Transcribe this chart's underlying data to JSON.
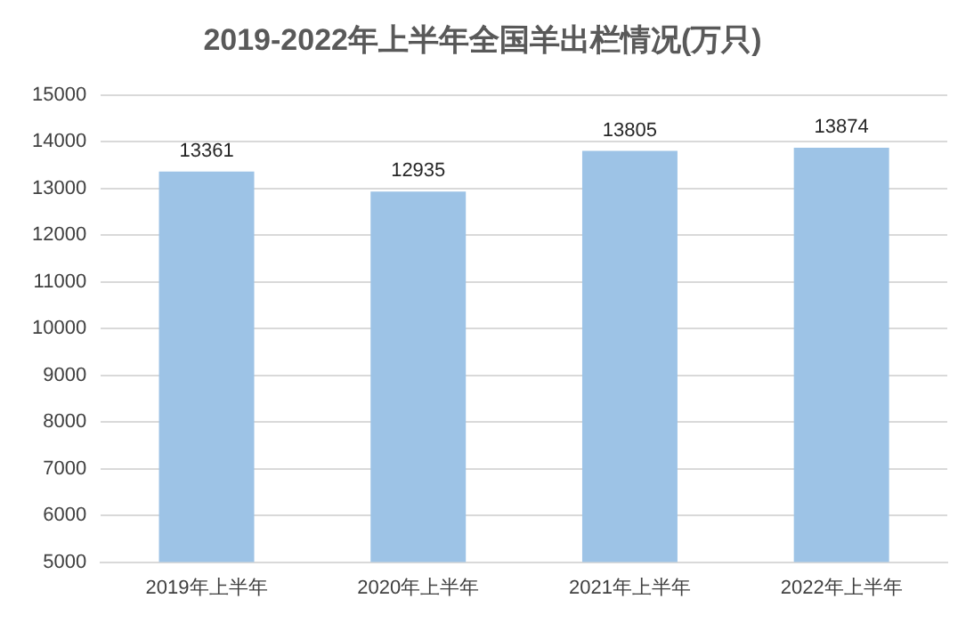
{
  "chart_data": {
    "type": "bar",
    "title": "2019-2022年上半年全国羊出栏情况(万只)",
    "categories": [
      "2019年上半年",
      "2020年上半年",
      "2021年上半年",
      "2022年上半年"
    ],
    "values": [
      13361,
      12935,
      13805,
      13874
    ],
    "color": "#9dc3e6",
    "ylim": [
      5000,
      15000
    ],
    "yticks": [
      5000,
      6000,
      7000,
      8000,
      9000,
      10000,
      11000,
      12000,
      13000,
      14000,
      15000
    ],
    "grid": "y",
    "data_labels": true
  }
}
